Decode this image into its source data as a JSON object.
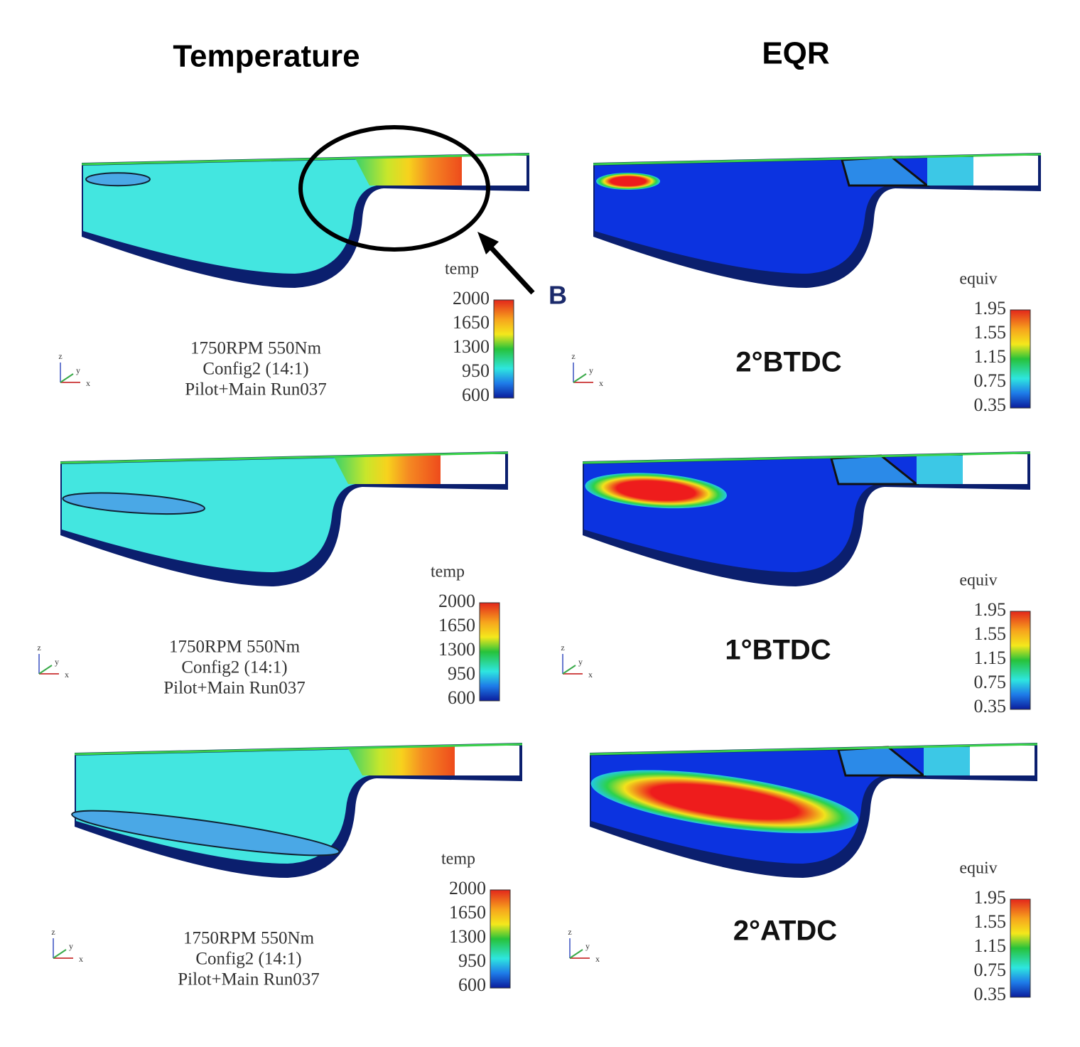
{
  "titles": {
    "temperature": "Temperature",
    "eqr": "EQR"
  },
  "annotation": "B",
  "axis_triad": {
    "z": "z",
    "y": "y",
    "x": "x"
  },
  "rows": [
    {
      "timing": "2°BTDC",
      "temperature": {
        "legend_title": "temp",
        "ticks": [
          "2000",
          "1650",
          "1300",
          "950",
          "600"
        ],
        "info": [
          "1750RPM 550Nm",
          "Config2 (14:1)",
          "Pilot+Main Run037"
        ]
      },
      "eqr": {
        "legend_title": "equiv",
        "ticks": [
          "1.95",
          "1.55",
          "1.15",
          "0.75",
          "0.35"
        ]
      }
    },
    {
      "timing": "1°BTDC",
      "temperature": {
        "legend_title": "temp",
        "ticks": [
          "2000",
          "1650",
          "1300",
          "950",
          "600"
        ],
        "info": [
          "1750RPM 550Nm",
          "Config2 (14:1)",
          "Pilot+Main Run037"
        ]
      },
      "eqr": {
        "legend_title": "equiv",
        "ticks": [
          "1.95",
          "1.55",
          "1.15",
          "0.75",
          "0.35"
        ]
      }
    },
    {
      "timing": "2°ATDC",
      "temperature": {
        "legend_title": "temp",
        "ticks": [
          "2000",
          "1650",
          "1300",
          "950",
          "600"
        ],
        "info": [
          "1750RPM 550Nm",
          "Config2 (14:1)",
          "Pilot+Main Run037"
        ]
      },
      "eqr": {
        "legend_title": "equiv",
        "ticks": [
          "1.95",
          "1.55",
          "1.15",
          "0.75",
          "0.35"
        ]
      }
    }
  ]
}
